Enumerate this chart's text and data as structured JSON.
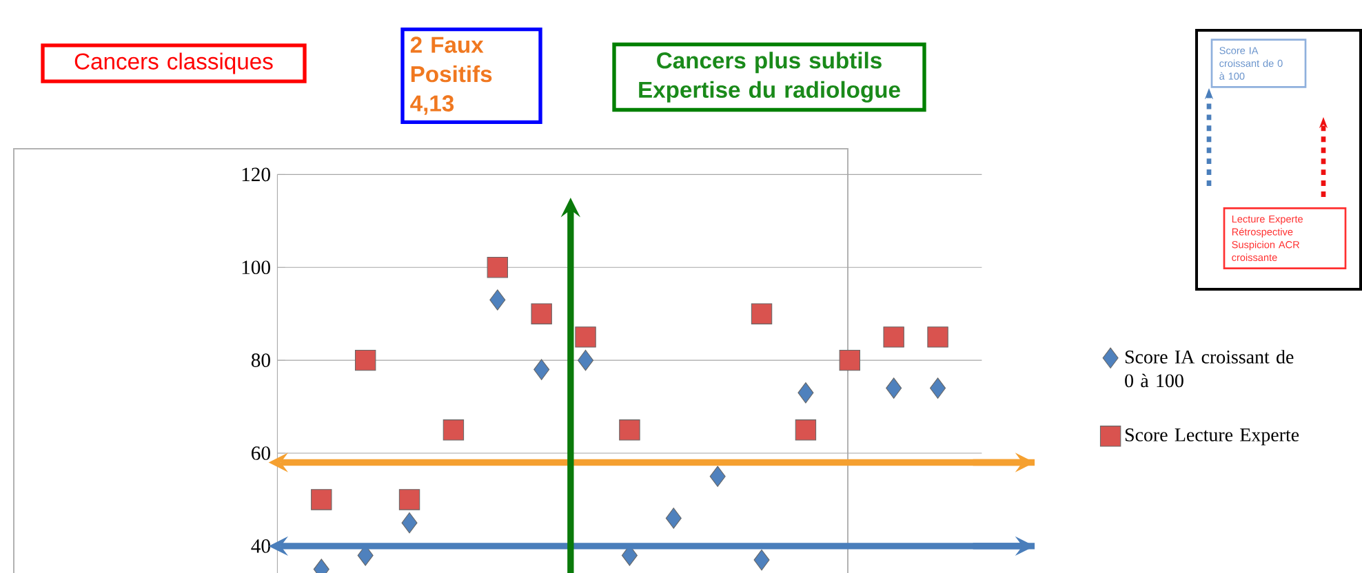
{
  "chart_data": {
    "type": "scatter",
    "categories": [
      null,
      null,
      null,
      null,
      null,
      null,
      null,
      null,
      null,
      null,
      null,
      null,
      null,
      null,
      null
    ],
    "ylim": [
      34,
      120
    ],
    "yticks": [
      40,
      60,
      80,
      100,
      120
    ],
    "tick_labels": "y",
    "grid": "y",
    "legend": "right",
    "series": [
      {
        "name": "Score IA croissant de 0 à 100",
        "color": "#4f81bd",
        "marker": "diamond",
        "values": [
          35,
          38,
          45,
          null,
          93,
          78,
          80,
          38,
          46,
          55,
          37,
          73,
          null,
          74,
          74
        ]
      },
      {
        "name": "Score Lecture Experte",
        "color": "#d9534f",
        "marker": "square",
        "values": [
          50,
          80,
          50,
          65,
          100,
          90,
          85,
          65,
          null,
          null,
          90,
          65,
          80,
          85,
          85
        ]
      }
    ],
    "ref_lines": [
      {
        "axis": "y",
        "value": 58,
        "color": "#f5a030"
      },
      {
        "axis": "y",
        "value": 40,
        "color": "#4a7ebb"
      }
    ],
    "annotations": [
      "Cancers classiques",
      "2 Faux Positifs 4,13",
      "Cancers plus subtils Expertise du radiologue",
      "Score IA croissant de 0 à 100",
      "Lecture Experte Rétrospective Suspicion ACR croissante"
    ]
  }
}
